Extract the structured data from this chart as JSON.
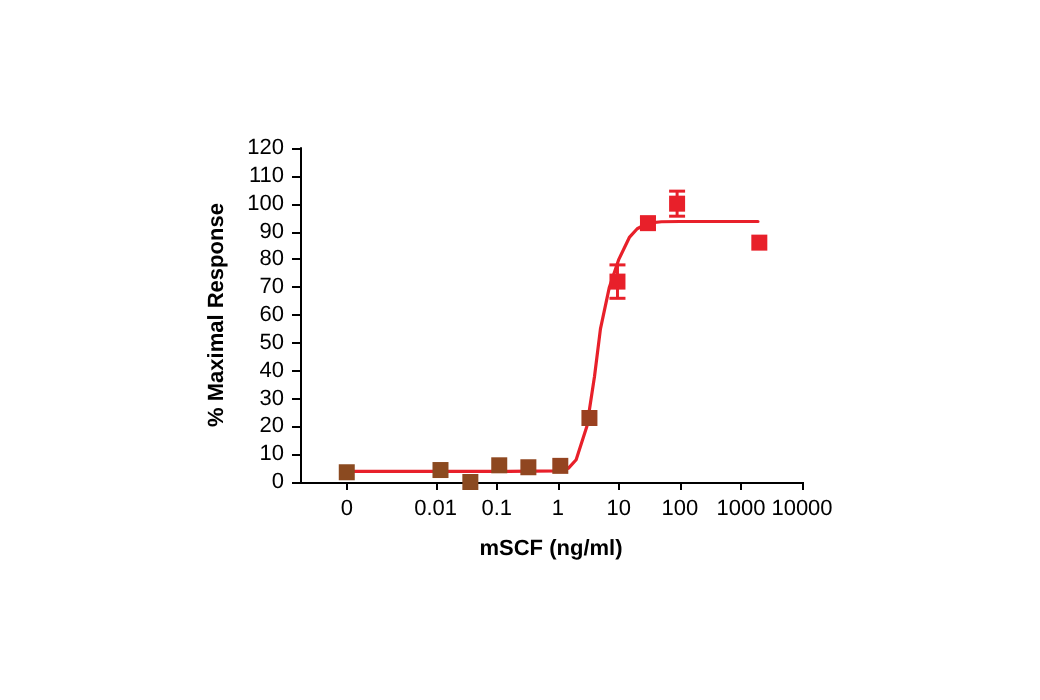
{
  "chart_data": {
    "type": "scatter",
    "xlabel": "mSCF (ng/ml)",
    "ylabel": "% Maximal Response",
    "log": "x",
    "marker": "square",
    "grid": false,
    "xlim": [
      6e-05,
      10000
    ],
    "xticks": [
      {
        "value": 0.00035,
        "label": "0"
      },
      0.01,
      0.1,
      1,
      10,
      100,
      1000,
      10000
    ],
    "ylim": [
      0,
      120
    ],
    "yticks": [
      0,
      10,
      20,
      30,
      40,
      50,
      60,
      70,
      80,
      90,
      100,
      110,
      120
    ],
    "series": [
      {
        "x": [
          0.00035,
          0.012,
          0.037,
          0.11,
          0.33,
          1.1,
          3.3,
          9.5,
          30,
          90,
          2000
        ],
        "values": [
          3.5,
          4.3,
          0,
          6,
          5.3,
          5.8,
          23,
          72,
          93,
          100,
          86
        ],
        "errors": [
          null,
          null,
          null,
          null,
          null,
          null,
          null,
          6,
          2,
          4.5,
          null
        ],
        "colors": [
          "#8b4a20",
          "#8b4a20",
          "#8b4a20",
          "#8e4820",
          "#904620",
          "#944420",
          "#9a4020",
          "#e8202a",
          "#e8202a",
          "#e8202a",
          "#e8202a"
        ],
        "color": "#e8202a"
      },
      {
        "type": "line",
        "x": [
          0.00035,
          0.01,
          0.1,
          1,
          1.5,
          2,
          3,
          4,
          5,
          7,
          10,
          15,
          20,
          30,
          50,
          100,
          300,
          1900
        ],
        "values": [
          3.8,
          3.8,
          3.8,
          4,
          5,
          8,
          20,
          38,
          55,
          70,
          80,
          88,
          91,
          93,
          93.5,
          93.6,
          93.6,
          93.6
        ],
        "color": "#e8202a",
        "marker": "none",
        "line_style": "solid"
      }
    ]
  }
}
